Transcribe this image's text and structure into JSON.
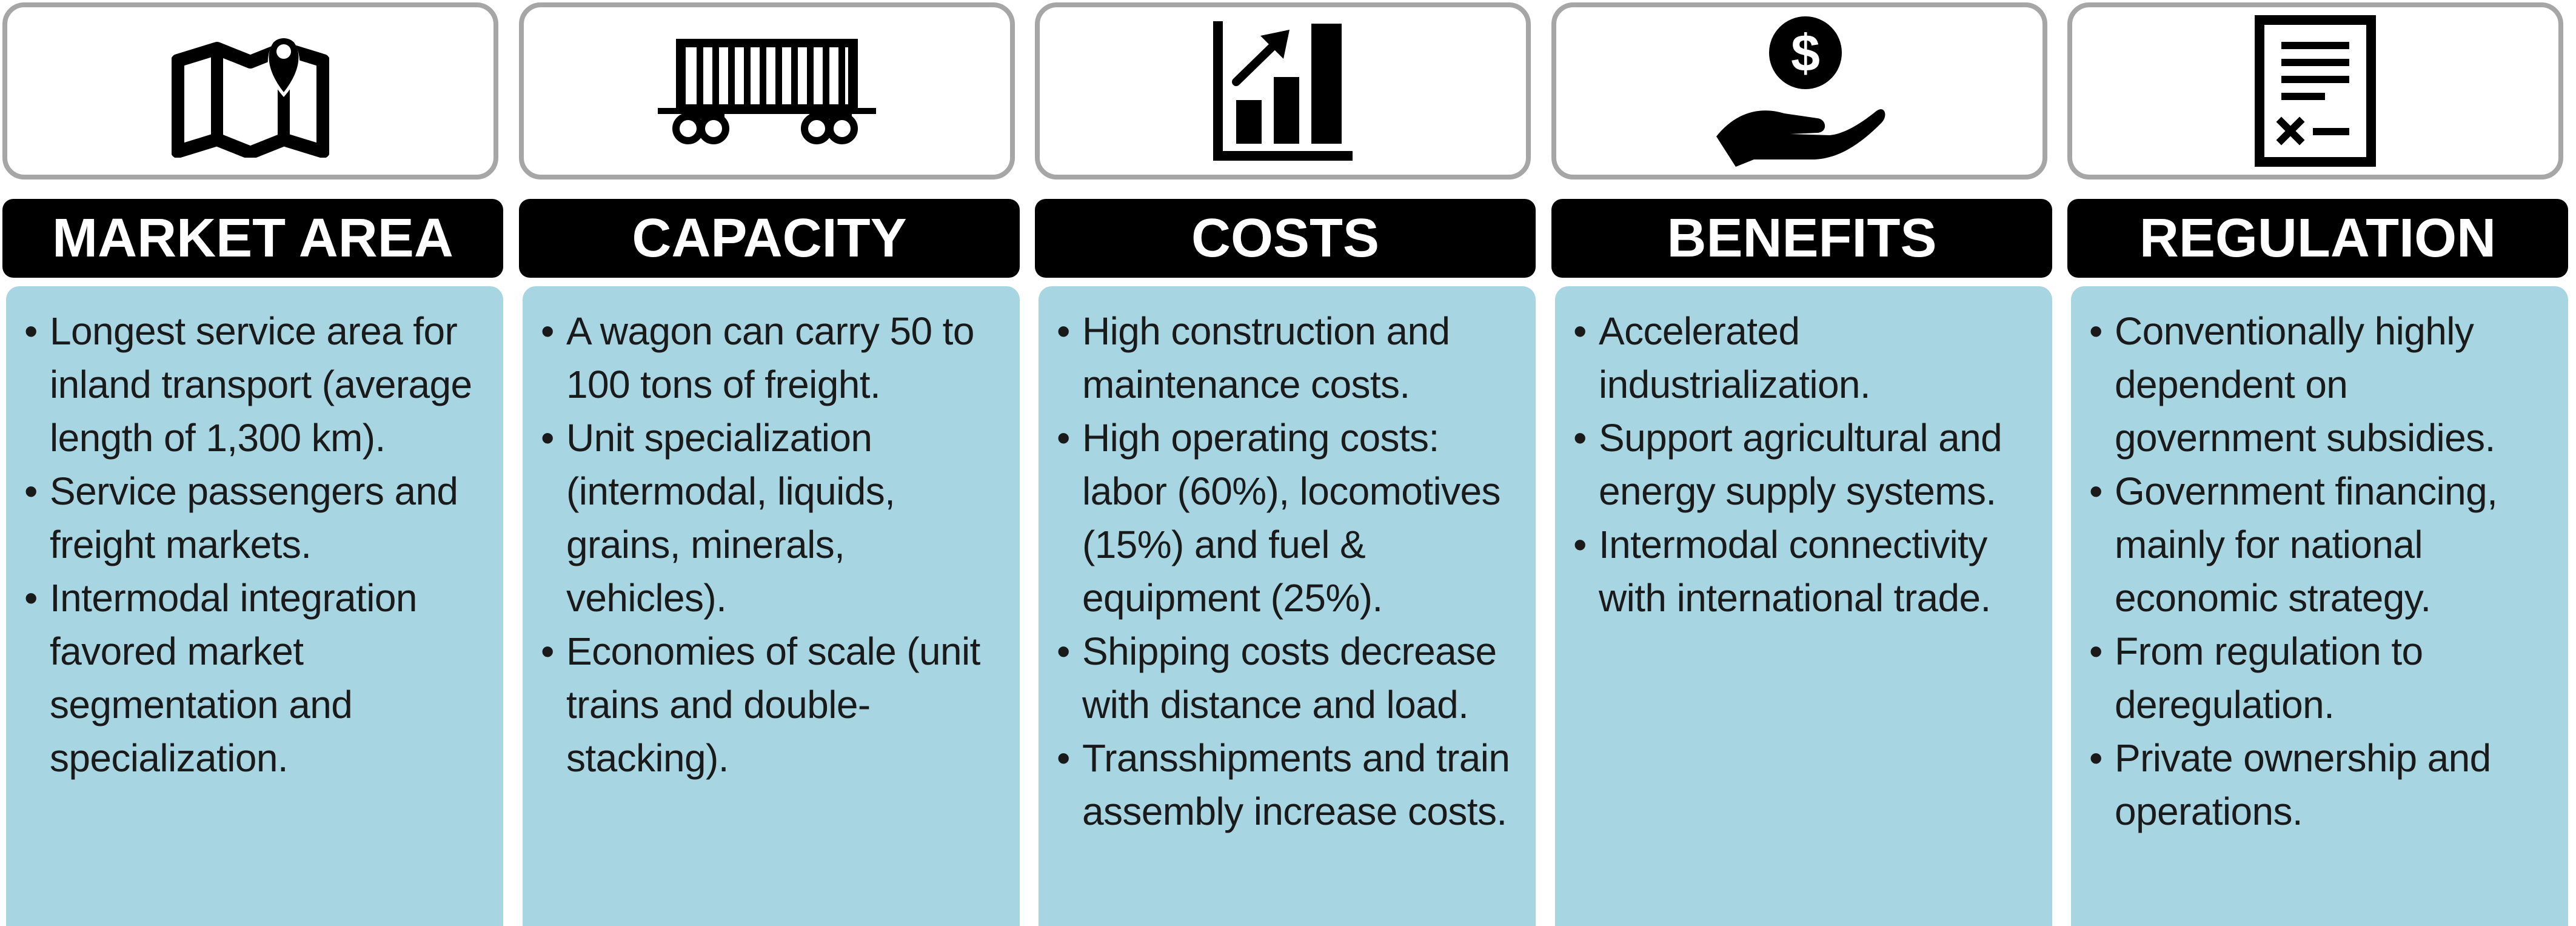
{
  "columns": [
    {
      "title": "MARKET AREA",
      "icon": "map-pin-icon",
      "items": [
        "Longest service area for inland transport (average length of 1,300 km).",
        "Service passengers and freight markets.",
        "Intermodal integration favored market segmentation and specialization."
      ]
    },
    {
      "title": "CAPACITY",
      "icon": "railcar-icon",
      "items": [
        "A wagon can carry 50 to 100 tons of freight.",
        "Unit specialization (intermodal, liquids, grains, minerals, vehicles).",
        "Economies of scale (unit trains and double-stacking)."
      ]
    },
    {
      "title": "COSTS",
      "icon": "bar-chart-growth-icon",
      "items": [
        "High construction and maintenance costs.",
        "High operating costs: labor (60%), locomotives (15%) and fuel & equipment (25%).",
        "Shipping costs decrease with distance and load.",
        "Transshipments and train assembly increase costs."
      ]
    },
    {
      "title": "BENEFITS",
      "icon": "hand-dollar-icon",
      "items": [
        "Accelerated industrialization.",
        "Support agricultural and energy supply systems.",
        "Intermodal connectivity with international trade."
      ]
    },
    {
      "title": "REGULATION",
      "icon": "document-icon",
      "items": [
        "Conventionally highly dependent on government subsidies.",
        "Government financing, mainly for national economic strategy.",
        "From regulation to deregulation.",
        "Private ownership and operations."
      ]
    }
  ],
  "colors": {
    "header_bg": "#000000",
    "header_text": "#ffffff",
    "body_bg": "#a8d5e2",
    "icon_box_border": "#a6a6a6",
    "text": "#1a1a1a"
  }
}
